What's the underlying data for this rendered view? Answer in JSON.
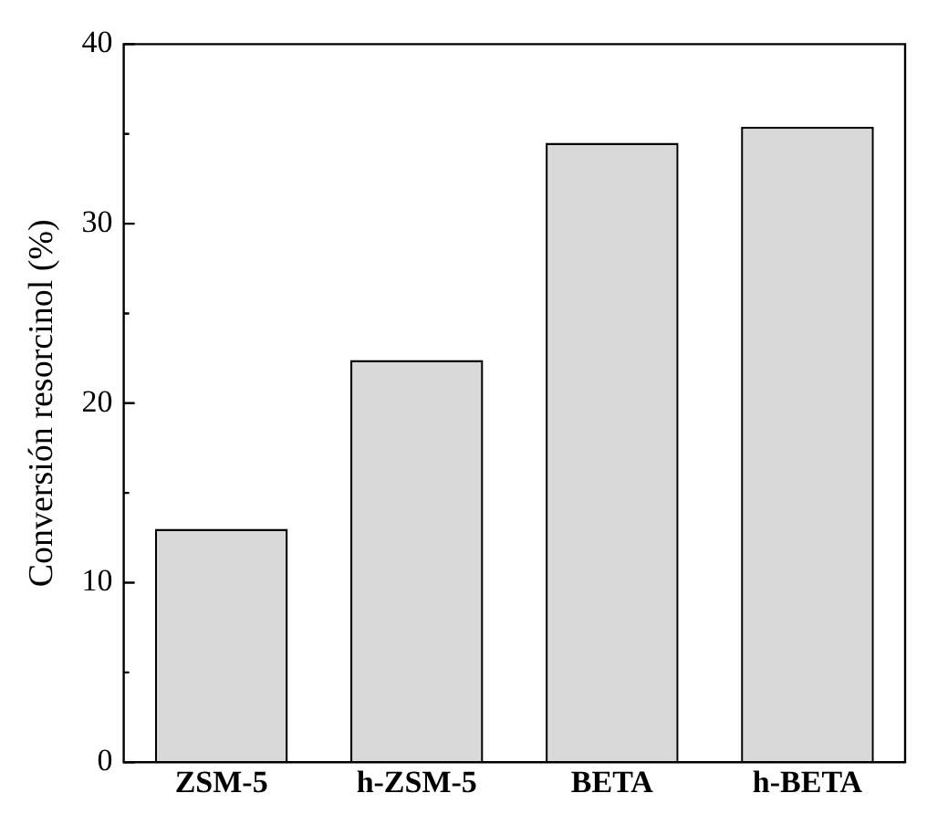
{
  "chart_data": {
    "type": "bar",
    "ylabel": "Conversión resorcinol (%)",
    "categories": [
      "ZSM-5",
      "h-ZSM-5",
      "BETA",
      "h-BETA"
    ],
    "values": [
      13,
      22.4,
      34.5,
      35.4
    ],
    "color": "#d9d9d9",
    "ylim": [
      0,
      40
    ],
    "yticks": [
      0,
      {
        "value": 5,
        "label": null
      },
      10,
      {
        "value": 15,
        "label": null
      },
      20,
      {
        "value": 25,
        "label": null
      },
      30,
      {
        "value": 35,
        "label": null
      },
      40
    ],
    "grid": false,
    "legend": false
  }
}
